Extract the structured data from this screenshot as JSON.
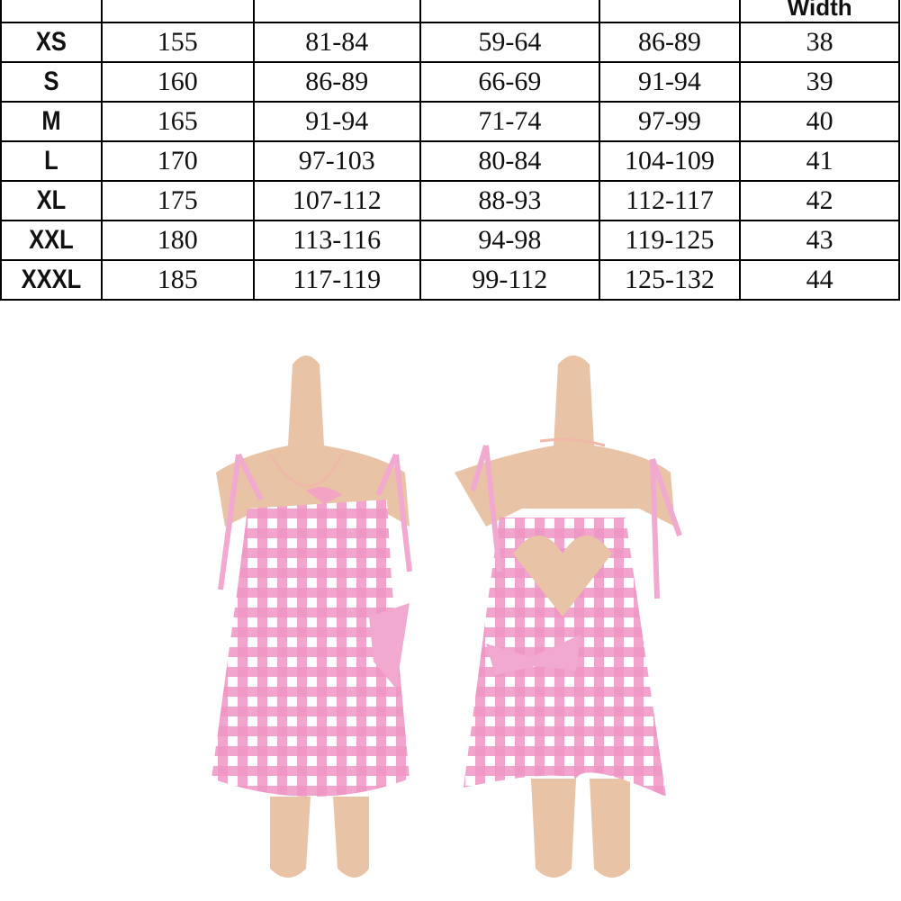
{
  "table": {
    "header": [
      "",
      "",
      "",
      "",
      "",
      "Width"
    ],
    "rows": [
      [
        "XS",
        "155",
        "81-84",
        "59-64",
        "86-89",
        "38"
      ],
      [
        "S",
        "160",
        "86-89",
        "66-69",
        "91-94",
        "39"
      ],
      [
        "M",
        "165",
        "91-94",
        "71-74",
        "97-99",
        "40"
      ],
      [
        "L",
        "170",
        "97-103",
        "80-84",
        "104-109",
        "41"
      ],
      [
        "XL",
        "175",
        "107-112",
        "88-93",
        "112-117",
        "42"
      ],
      [
        "XXL",
        "180",
        "113-116",
        "94-98",
        "119-125",
        "43"
      ],
      [
        "XXXL",
        "185",
        "117-119",
        "99-112",
        "125-132",
        "44"
      ]
    ]
  },
  "photo": {
    "dress_color": "#f2a9cf",
    "check_color": "#ffffff",
    "mannequin_color": "#e9c3a6"
  }
}
